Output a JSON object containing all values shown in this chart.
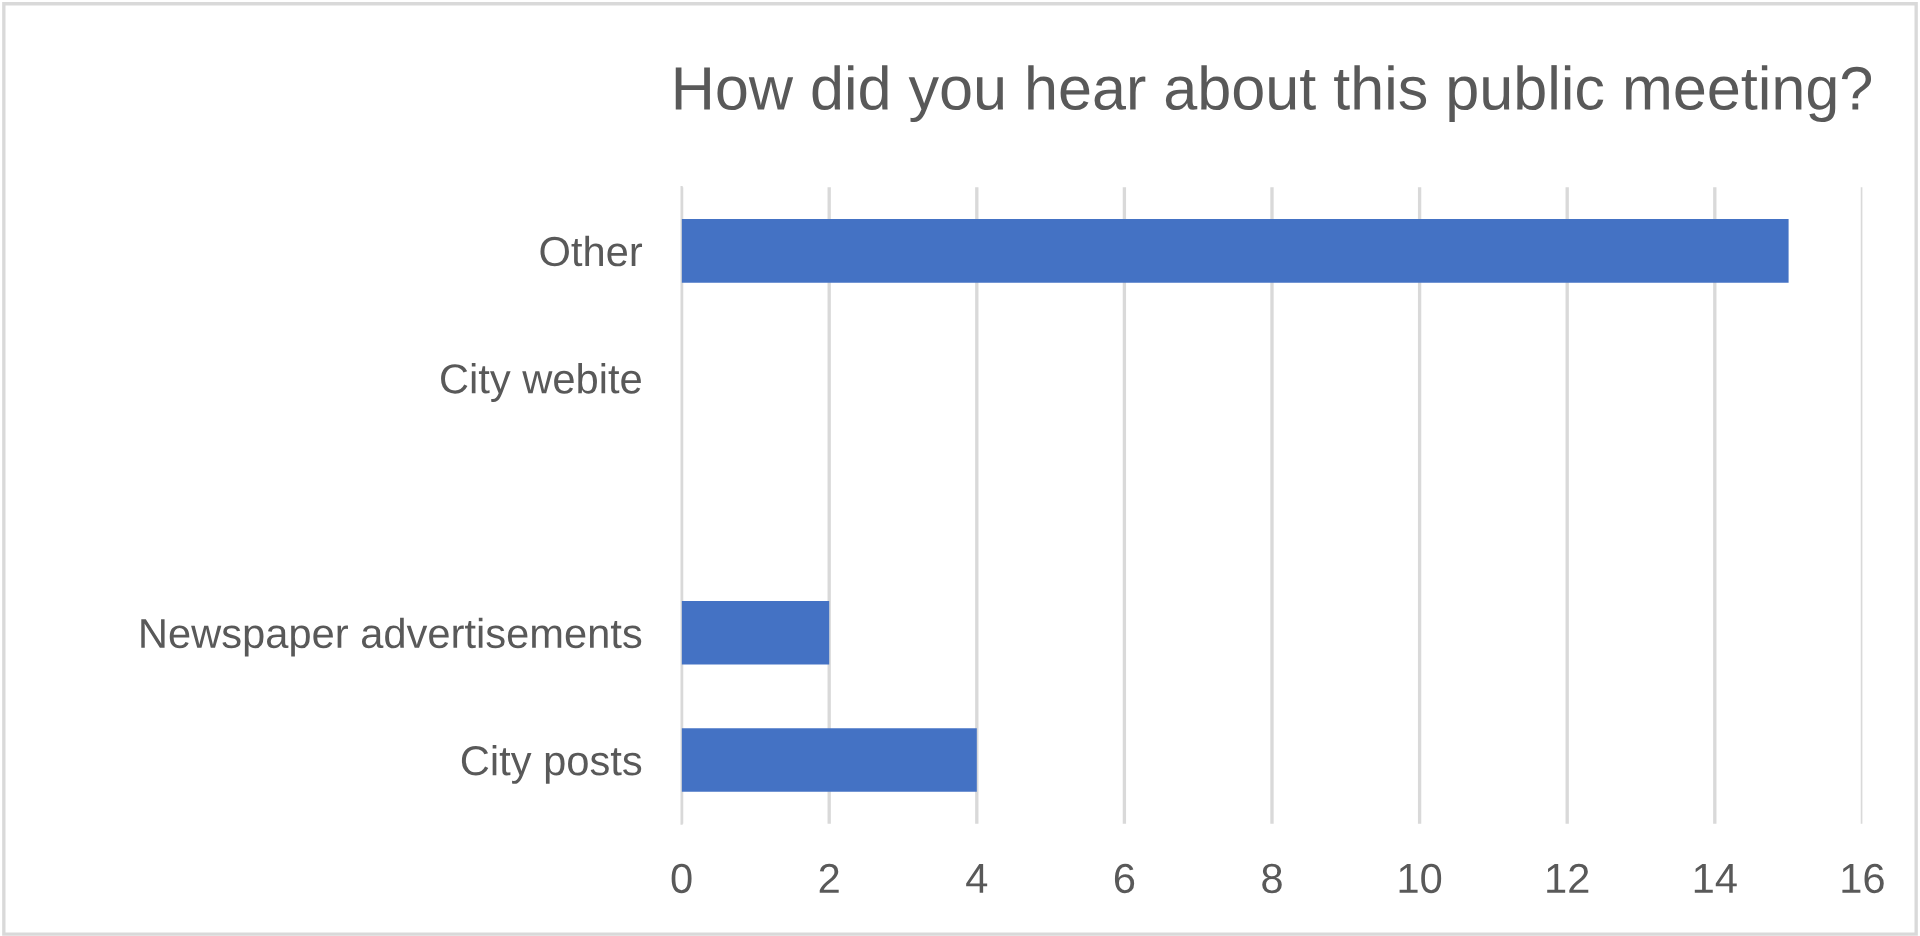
{
  "chart_data": {
    "type": "bar",
    "orientation": "horizontal",
    "title": "How did you hear about this public meeting?",
    "categories": [
      "Other",
      "City webite",
      null,
      "Newspaper advertisements",
      "City posts"
    ],
    "values": [
      15,
      0,
      0,
      2,
      4
    ],
    "color": "#4472c4",
    "xlim": [
      0,
      16
    ],
    "xticks": [
      0,
      2,
      4,
      6,
      8,
      10,
      12,
      14,
      16
    ],
    "grid": "x",
    "legend": false
  }
}
